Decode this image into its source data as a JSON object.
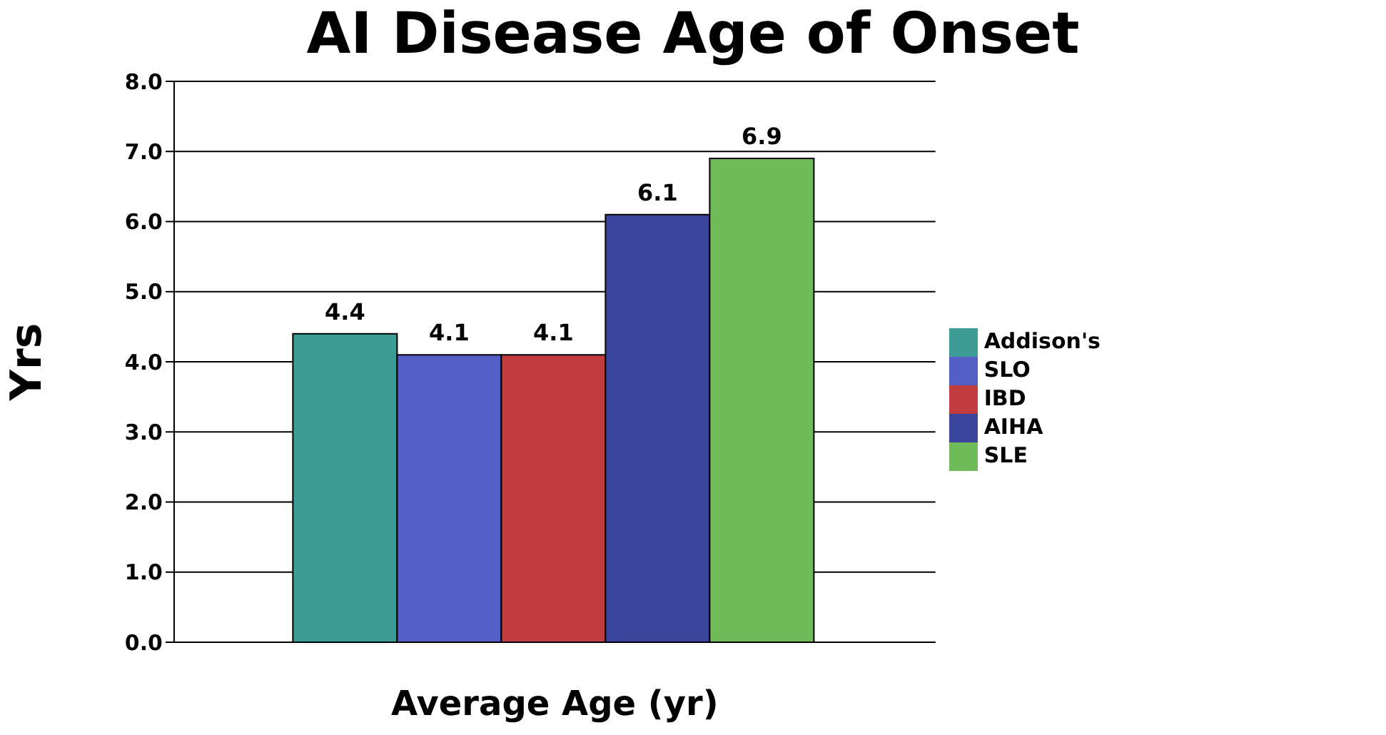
{
  "chart_data": {
    "type": "bar",
    "title": "AI Disease Age of Onset",
    "xlabel": "Average Age (yr)",
    "ylabel": "Yrs",
    "categories": [
      null
    ],
    "series": [
      {
        "name": "Addison's",
        "color": "#3d9c96",
        "values": [
          4.4
        ]
      },
      {
        "name": "SLO",
        "color": "#545fc5",
        "values": [
          4.1
        ]
      },
      {
        "name": "IBD",
        "color": "#c13c3e",
        "values": [
          4.1
        ]
      },
      {
        "name": "AIHA",
        "color": "#3c459c",
        "values": [
          6.1
        ]
      },
      {
        "name": "SLE",
        "color": "#6fbb5a",
        "values": [
          6.9
        ]
      }
    ],
    "ylim": [
      0,
      8
    ],
    "yticks": [
      {
        "value": 0,
        "label": "0.0"
      },
      {
        "value": 1,
        "label": "1.0"
      },
      {
        "value": 2,
        "label": "2.0"
      },
      {
        "value": 3,
        "label": "3.0"
      },
      {
        "value": 4,
        "label": "4.0"
      },
      {
        "value": 5,
        "label": "5.0"
      },
      {
        "value": 6,
        "label": "6.0"
      },
      {
        "value": 7,
        "label": "7.0"
      },
      {
        "value": 8,
        "label": "8.0"
      }
    ],
    "grid": "y",
    "legend": "right",
    "data_labels": true
  }
}
